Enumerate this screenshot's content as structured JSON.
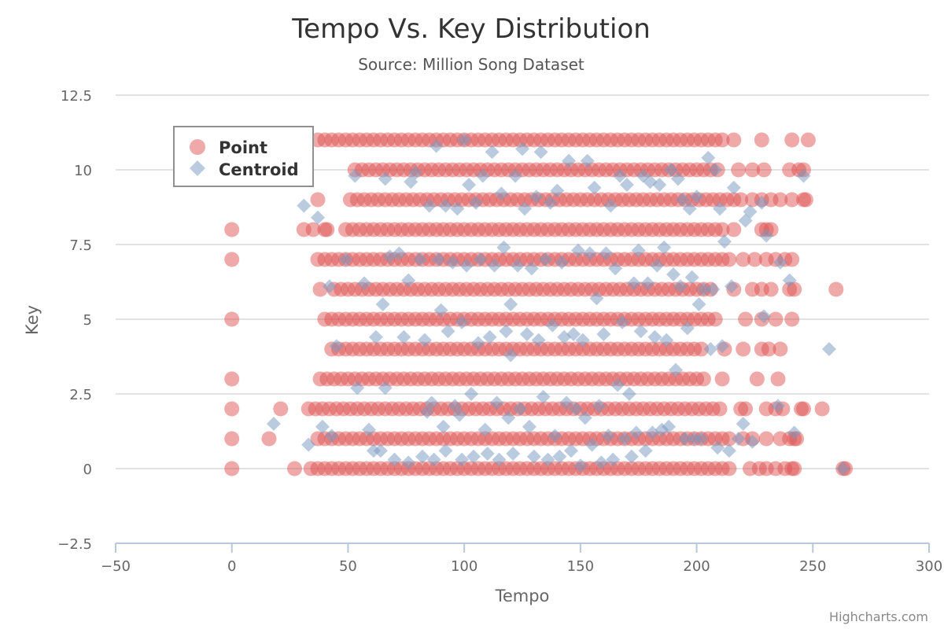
{
  "chart_data": {
    "type": "scatter",
    "title": "Tempo Vs. Key Distribution",
    "subtitle": "Source: Million Song Dataset",
    "xlabel": "Tempo",
    "ylabel": "Key",
    "xlim": [
      -50,
      300
    ],
    "ylim": [
      -2.5,
      12.5
    ],
    "x_ticks": [
      "−50",
      "0",
      "50",
      "100",
      "150",
      "200",
      "250",
      "300"
    ],
    "x_tick_values": [
      -50,
      0,
      50,
      100,
      150,
      200,
      250,
      300
    ],
    "y_ticks": [
      "−2.5",
      "0",
      "2.5",
      "5",
      "7.5",
      "10",
      "12.5"
    ],
    "y_tick_values": [
      -2.5,
      0,
      2.5,
      5,
      7.5,
      10,
      12.5
    ],
    "grid": true,
    "legend_position": "top-left",
    "credits": "Highcharts.com",
    "series": [
      {
        "name": "Point",
        "marker": "circle",
        "color": "rgba(223,83,83,0.5)",
        "dense_bands": [
          {
            "key": 0,
            "from": 34,
            "to": 216
          },
          {
            "key": 1,
            "from": 37,
            "to": 214
          },
          {
            "key": 2,
            "from": 36,
            "to": 211
          },
          {
            "key": 3,
            "from": 38,
            "to": 203
          },
          {
            "key": 4,
            "from": 43,
            "to": 203
          },
          {
            "key": 5,
            "from": 40,
            "to": 209
          },
          {
            "key": 6,
            "from": 44,
            "to": 208
          },
          {
            "key": 7,
            "from": 37,
            "to": 214
          },
          {
            "key": 8,
            "from": 49,
            "to": 211
          },
          {
            "key": 9,
            "from": 51,
            "to": 221
          },
          {
            "key": 10,
            "from": 53,
            "to": 210
          },
          {
            "key": 11,
            "from": 37,
            "to": 213
          }
        ],
        "points": [
          [
            0,
            0
          ],
          [
            0,
            1
          ],
          [
            0,
            2
          ],
          [
            0,
            3
          ],
          [
            0,
            5
          ],
          [
            0,
            7
          ],
          [
            0,
            8
          ],
          [
            16,
            1
          ],
          [
            21,
            2
          ],
          [
            27,
            0
          ],
          [
            33,
            2
          ],
          [
            31,
            8
          ],
          [
            35,
            8
          ],
          [
            40,
            8
          ],
          [
            41,
            8
          ],
          [
            37,
            9
          ],
          [
            38,
            6
          ],
          [
            223,
            0
          ],
          [
            227,
            0
          ],
          [
            230,
            0
          ],
          [
            234,
            0
          ],
          [
            238,
            0
          ],
          [
            241,
            0
          ],
          [
            242,
            0
          ],
          [
            263,
            0
          ],
          [
            264,
            0
          ],
          [
            220,
            1
          ],
          [
            224,
            1
          ],
          [
            230,
            1
          ],
          [
            236,
            1
          ],
          [
            240,
            1
          ],
          [
            242,
            1
          ],
          [
            243,
            1
          ],
          [
            219,
            2
          ],
          [
            221,
            2
          ],
          [
            230,
            2
          ],
          [
            234,
            2
          ],
          [
            237,
            2
          ],
          [
            245,
            2
          ],
          [
            246,
            2
          ],
          [
            254,
            2
          ],
          [
            211,
            3
          ],
          [
            226,
            3
          ],
          [
            235,
            3
          ],
          [
            212,
            4
          ],
          [
            220,
            4
          ],
          [
            228,
            4
          ],
          [
            231,
            4
          ],
          [
            236,
            4
          ],
          [
            221,
            5
          ],
          [
            228,
            5
          ],
          [
            234,
            5
          ],
          [
            241,
            5
          ],
          [
            216,
            6
          ],
          [
            224,
            6
          ],
          [
            228,
            6
          ],
          [
            232,
            6
          ],
          [
            240,
            6
          ],
          [
            242,
            6
          ],
          [
            260,
            6
          ],
          [
            220,
            7
          ],
          [
            225,
            7
          ],
          [
            230,
            7
          ],
          [
            234,
            7
          ],
          [
            238,
            7
          ],
          [
            241,
            7
          ],
          [
            216,
            8
          ],
          [
            228,
            8
          ],
          [
            230,
            8
          ],
          [
            232,
            8
          ],
          [
            224,
            9
          ],
          [
            228,
            9
          ],
          [
            232,
            9
          ],
          [
            236,
            9
          ],
          [
            241,
            9
          ],
          [
            246,
            9
          ],
          [
            247,
            9
          ],
          [
            218,
            10
          ],
          [
            224,
            10
          ],
          [
            229,
            10
          ],
          [
            240,
            10
          ],
          [
            244,
            10
          ],
          [
            246,
            10
          ],
          [
            216,
            11
          ],
          [
            228,
            11
          ],
          [
            241,
            11
          ],
          [
            248,
            11
          ]
        ]
      },
      {
        "name": "Centroid",
        "marker": "diamond",
        "color": "rgba(119,152,191,0.5)",
        "points": [
          [
            18,
            1.5
          ],
          [
            33,
            0.8
          ],
          [
            39,
            1.4
          ],
          [
            43,
            1.1
          ],
          [
            31,
            8.8
          ],
          [
            37,
            8.4
          ],
          [
            42,
            6.1
          ],
          [
            45,
            4.1
          ],
          [
            49,
            7.0
          ],
          [
            53,
            9.8
          ],
          [
            54,
            2.7
          ],
          [
            57,
            6.2
          ],
          [
            59,
            1.3
          ],
          [
            61,
            0.6
          ],
          [
            62,
            4.4
          ],
          [
            64,
            0.6
          ],
          [
            65,
            5.5
          ],
          [
            66,
            2.7
          ],
          [
            66,
            9.7
          ],
          [
            68,
            7.1
          ],
          [
            70,
            0.3
          ],
          [
            72,
            7.2
          ],
          [
            74,
            4.4
          ],
          [
            76,
            0.2
          ],
          [
            76,
            6.3
          ],
          [
            77,
            9.6
          ],
          [
            79,
            9.9
          ],
          [
            81,
            7.0
          ],
          [
            82,
            0.4
          ],
          [
            83,
            4.3
          ],
          [
            84,
            1.9
          ],
          [
            85,
            8.8
          ],
          [
            86,
            2.2
          ],
          [
            87,
            0.3
          ],
          [
            88,
            10.8
          ],
          [
            89,
            7.0
          ],
          [
            90,
            5.3
          ],
          [
            91,
            1.4
          ],
          [
            92,
            0.6
          ],
          [
            92,
            8.8
          ],
          [
            93,
            4.6
          ],
          [
            95,
            6.9
          ],
          [
            96,
            2.1
          ],
          [
            97,
            8.7
          ],
          [
            98,
            1.8
          ],
          [
            99,
            4.9
          ],
          [
            99,
            0.3
          ],
          [
            100,
            11.0
          ],
          [
            101,
            6.8
          ],
          [
            102,
            9.5
          ],
          [
            103,
            2.5
          ],
          [
            104,
            0.4
          ],
          [
            105,
            8.9
          ],
          [
            106,
            4.2
          ],
          [
            107,
            7.0
          ],
          [
            108,
            9.8
          ],
          [
            109,
            1.3
          ],
          [
            110,
            0.5
          ],
          [
            111,
            4.4
          ],
          [
            112,
            10.6
          ],
          [
            113,
            6.8
          ],
          [
            114,
            2.2
          ],
          [
            115,
            0.3
          ],
          [
            116,
            9.2
          ],
          [
            117,
            7.4
          ],
          [
            118,
            4.6
          ],
          [
            119,
            1.7
          ],
          [
            120,
            5.5
          ],
          [
            120,
            3.8
          ],
          [
            121,
            0.5
          ],
          [
            122,
            9.8
          ],
          [
            123,
            6.8
          ],
          [
            124,
            2.0
          ],
          [
            125,
            10.7
          ],
          [
            126,
            8.7
          ],
          [
            127,
            4.5
          ],
          [
            128,
            1.4
          ],
          [
            129,
            6.7
          ],
          [
            130,
            0.4
          ],
          [
            131,
            9.1
          ],
          [
            132,
            4.3
          ],
          [
            133,
            10.6
          ],
          [
            134,
            2.4
          ],
          [
            135,
            7.0
          ],
          [
            136,
            0.3
          ],
          [
            137,
            8.9
          ],
          [
            138,
            4.8
          ],
          [
            139,
            1.1
          ],
          [
            140,
            9.3
          ],
          [
            141,
            0.4
          ],
          [
            142,
            6.9
          ],
          [
            143,
            4.4
          ],
          [
            144,
            2.2
          ],
          [
            145,
            10.3
          ],
          [
            146,
            0.6
          ],
          [
            147,
            4.5
          ],
          [
            148,
            2.0
          ],
          [
            149,
            7.3
          ],
          [
            150,
            0.1
          ],
          [
            151,
            4.3
          ],
          [
            152,
            1.7
          ],
          [
            153,
            10.3
          ],
          [
            154,
            7.2
          ],
          [
            155,
            0.8
          ],
          [
            156,
            9.4
          ],
          [
            157,
            5.7
          ],
          [
            158,
            2.1
          ],
          [
            159,
            0.2
          ],
          [
            160,
            4.5
          ],
          [
            161,
            7.2
          ],
          [
            162,
            1.1
          ],
          [
            163,
            8.8
          ],
          [
            164,
            0.3
          ],
          [
            165,
            6.7
          ],
          [
            166,
            2.8
          ],
          [
            167,
            9.8
          ],
          [
            168,
            4.9
          ],
          [
            169,
            1.0
          ],
          [
            170,
            9.5
          ],
          [
            171,
            2.5
          ],
          [
            172,
            0.4
          ],
          [
            173,
            6.2
          ],
          [
            174,
            1.2
          ],
          [
            175,
            7.3
          ],
          [
            176,
            4.6
          ],
          [
            177,
            9.8
          ],
          [
            178,
            0.6
          ],
          [
            179,
            6.2
          ],
          [
            180,
            9.6
          ],
          [
            181,
            1.2
          ],
          [
            182,
            4.4
          ],
          [
            183,
            6.8
          ],
          [
            184,
            9.5
          ],
          [
            185,
            1.3
          ],
          [
            186,
            7.4
          ],
          [
            187,
            4.3
          ],
          [
            188,
            1.4
          ],
          [
            189,
            10.0
          ],
          [
            190,
            6.5
          ],
          [
            191,
            3.3
          ],
          [
            192,
            9.7
          ],
          [
            193,
            6.1
          ],
          [
            194,
            9.0
          ],
          [
            195,
            1.0
          ],
          [
            196,
            4.7
          ],
          [
            197,
            8.7
          ],
          [
            198,
            6.4
          ],
          [
            199,
            1.0
          ],
          [
            200,
            9.1
          ],
          [
            201,
            5.5
          ],
          [
            202,
            1.0
          ],
          [
            203,
            6.0
          ],
          [
            205,
            10.4
          ],
          [
            206,
            4.0
          ],
          [
            207,
            6.0
          ],
          [
            208,
            10.0
          ],
          [
            209,
            0.7
          ],
          [
            210,
            8.7
          ],
          [
            211,
            4.1
          ],
          [
            212,
            7.6
          ],
          [
            214,
            0.6
          ],
          [
            215,
            6.1
          ],
          [
            216,
            9.4
          ],
          [
            218,
            1.0
          ],
          [
            220,
            1.5
          ],
          [
            221,
            8.3
          ],
          [
            223,
            8.6
          ],
          [
            224,
            0.9
          ],
          [
            228,
            8.9
          ],
          [
            229,
            5.1
          ],
          [
            230,
            7.8
          ],
          [
            235,
            2.1
          ],
          [
            236,
            6.9
          ],
          [
            240,
            6.3
          ],
          [
            242,
            1.2
          ],
          [
            246,
            9.8
          ],
          [
            257,
            4.0
          ],
          [
            263,
            0.0
          ]
        ]
      }
    ]
  }
}
